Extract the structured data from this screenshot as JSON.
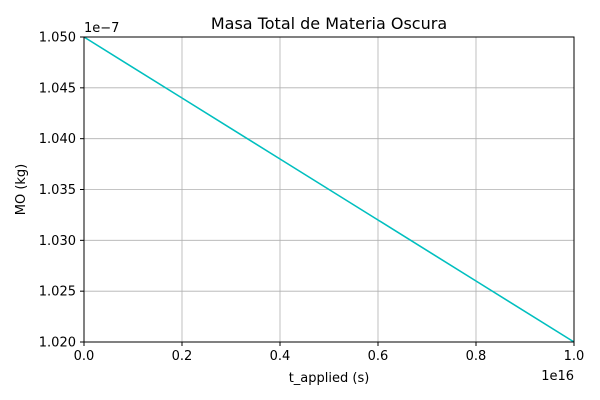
{
  "chart_data": {
    "type": "line",
    "title": "Masa Total de Materia Oscura",
    "xlabel": "t_applied (s)",
    "ylabel": "MO (kg)",
    "x_offset_text": "1e16",
    "y_offset_text": "1e−7",
    "x_scale_factor": 1e+16,
    "y_scale_factor": 1e-07,
    "xlim": [
      0.0,
      1.0
    ],
    "ylim": [
      1.02,
      1.05
    ],
    "x_ticks": [
      0.0,
      0.2,
      0.4,
      0.6,
      0.8,
      1.0
    ],
    "x_tick_labels": [
      "0.0",
      "0.2",
      "0.4",
      "0.6",
      "0.8",
      "1.0"
    ],
    "y_ticks": [
      1.02,
      1.025,
      1.03,
      1.035,
      1.04,
      1.045,
      1.05
    ],
    "y_tick_labels": [
      "1.020",
      "1.025",
      "1.030",
      "1.035",
      "1.040",
      "1.045",
      "1.050"
    ],
    "grid": true,
    "series": [
      {
        "color": "#00bfbf",
        "x": [
          0.0,
          0.2,
          0.4,
          0.6,
          0.8,
          1.0
        ],
        "y": [
          1.05,
          1.044,
          1.038,
          1.032,
          1.026,
          1.02
        ]
      }
    ]
  }
}
